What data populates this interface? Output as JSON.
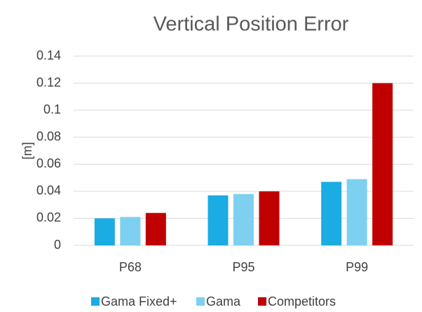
{
  "chart_data": {
    "type": "bar",
    "title": "Vertical Position Error",
    "y_label": "[m]",
    "categories": [
      "P68",
      "P95",
      "P99"
    ],
    "series": [
      {
        "name": "Gama Fixed+",
        "color": "#1aace3",
        "values": [
          0.02,
          0.037,
          0.047
        ]
      },
      {
        "name": "Gama",
        "color": "#7dd0f0",
        "values": [
          0.021,
          0.038,
          0.049
        ]
      },
      {
        "name": "Competitors",
        "color": "#c00000",
        "values": [
          0.024,
          0.04,
          0.12
        ]
      }
    ],
    "ylim": [
      0,
      0.14
    ],
    "yticks": [
      0,
      0.02,
      0.04,
      0.06,
      0.08,
      0.1,
      0.12,
      0.14
    ],
    "grid": true,
    "legend": "bottom"
  }
}
